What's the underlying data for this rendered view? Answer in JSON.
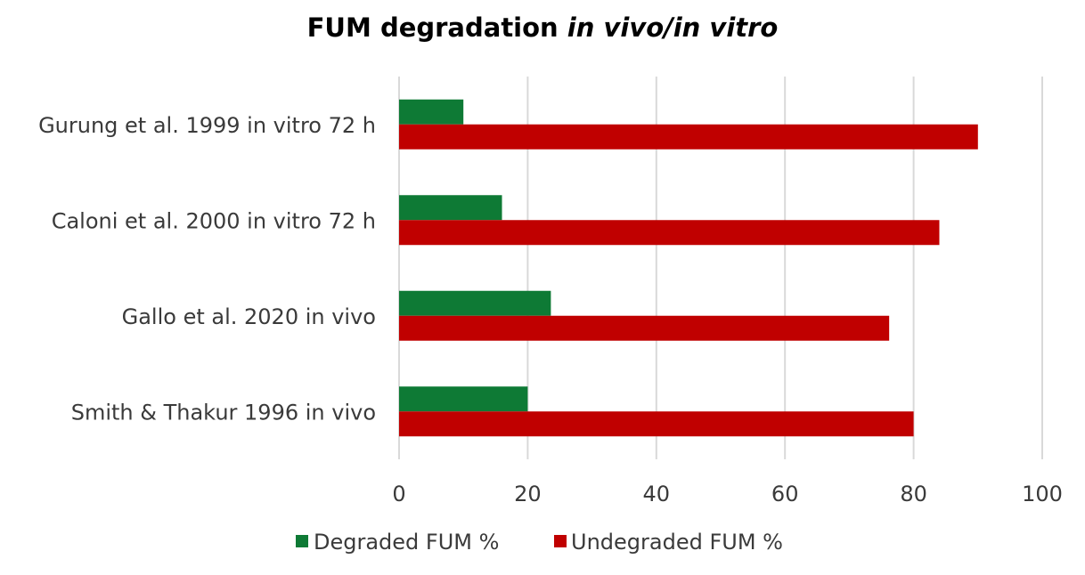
{
  "chart_data": {
    "type": "bar",
    "orientation": "horizontal",
    "title_main": "FUM degradation ",
    "title_italic": "in vivo/in vitro",
    "categories": [
      "Gurung et al. 1999 in vitro 72 h",
      "Caloni et al. 2000 in vitro 72 h",
      "Gallo et al. 2020 in vivo",
      "Smith & Thakur 1996 in vivo"
    ],
    "series": [
      {
        "name": "Degraded FUM %",
        "color": "#0e7a35",
        "values": [
          10,
          16,
          23.6,
          20
        ]
      },
      {
        "name": "Undegraded FUM %",
        "color": "#c00000",
        "values": [
          90,
          84,
          76.2,
          80
        ]
      }
    ],
    "xlim": [
      0,
      100
    ],
    "xticks": [
      0,
      20,
      40,
      60,
      80,
      100
    ],
    "grid": true,
    "legend_position": "bottom"
  }
}
